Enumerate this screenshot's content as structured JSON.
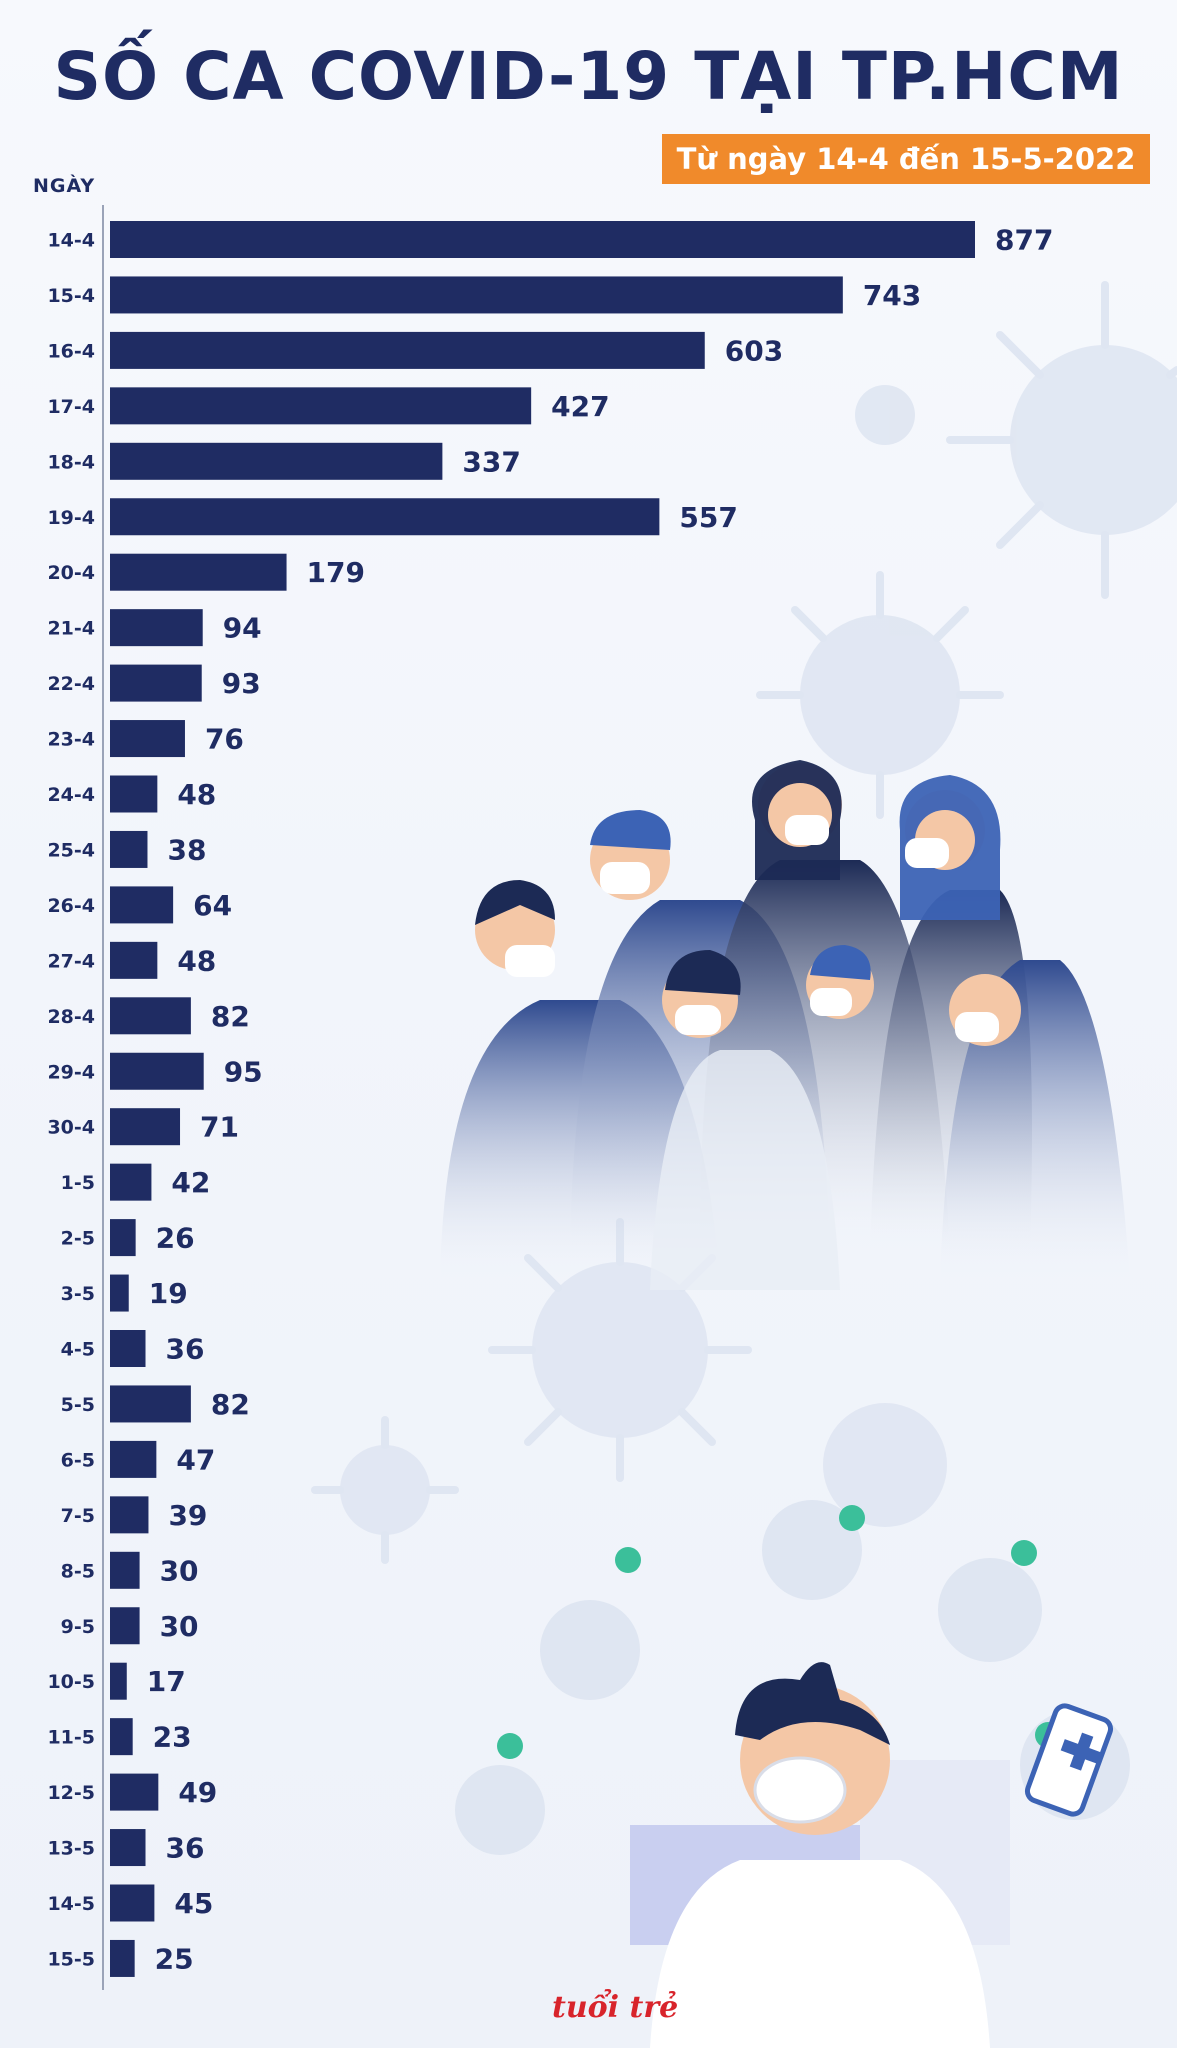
{
  "header": {
    "title": "SỐ CA COVID-19 TẠI TP.HCM",
    "subtitle": "Từ ngày 14-4 đến 15-5-2022"
  },
  "logo_text": "tuổi trẻ",
  "colors": {
    "bar": "#1f2c63",
    "title": "#1f2c63",
    "subtitle_bg": "#f08a2b",
    "label": "#1f2c63"
  },
  "chart_data": {
    "type": "bar",
    "orientation": "horizontal",
    "title": "SỐ CA COVID-19 TẠI TP.HCM",
    "subtitle": "Từ ngày 14-4 đến 15-5-2022",
    "ylabel": "NGÀY",
    "xlabel": "",
    "grid": false,
    "categories": [
      "14-4",
      "15-4",
      "16-4",
      "17-4",
      "18-4",
      "19-4",
      "20-4",
      "21-4",
      "22-4",
      "23-4",
      "24-4",
      "25-4",
      "26-4",
      "27-4",
      "28-4",
      "29-4",
      "30-4",
      "1-5",
      "2-5",
      "3-5",
      "4-5",
      "5-5",
      "6-5",
      "7-5",
      "8-5",
      "9-5",
      "10-5",
      "11-5",
      "12-5",
      "13-5",
      "14-5",
      "15-5"
    ],
    "values": [
      877,
      743,
      603,
      427,
      337,
      557,
      179,
      94,
      93,
      76,
      48,
      38,
      64,
      48,
      82,
      95,
      71,
      42,
      26,
      19,
      36,
      82,
      47,
      39,
      30,
      30,
      17,
      23,
      49,
      36,
      45,
      25
    ],
    "xlim": [
      0,
      877
    ]
  }
}
